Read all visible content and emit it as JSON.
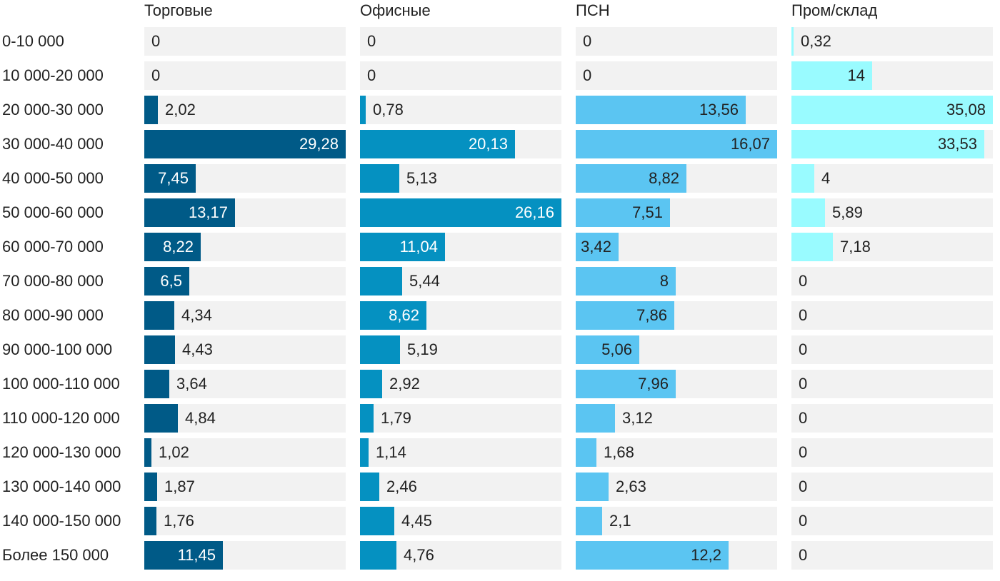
{
  "chart_data": {
    "type": "bar",
    "orientation": "horizontal",
    "layout": "small-multiples",
    "categories": [
      "0-10 000",
      "10 000-20 000",
      "20 000-30 000",
      "30 000-40 000",
      "40 000-50 000",
      "50 000-60 000",
      "60 000-70 000",
      "70 000-80 000",
      "80 000-90 000",
      "90 000-100 000",
      "100 000-110 000",
      "110 000-120 000",
      "120 000-130 000",
      "130 000-140 000",
      "140 000-150 000",
      "Более 150 000"
    ],
    "series": [
      {
        "name": "Торговые",
        "color": "#005a87",
        "values": [
          0,
          0,
          2.02,
          29.28,
          7.45,
          13.17,
          8.22,
          6.5,
          4.34,
          4.43,
          3.64,
          4.84,
          1.02,
          1.87,
          1.76,
          11.45
        ],
        "labels": [
          "0",
          "0",
          "2,02",
          "29,28",
          "7,45",
          "13,17",
          "8,22",
          "6,5",
          "4,34",
          "4,43",
          "3,64",
          "4,84",
          "1,02",
          "1,87",
          "1,76",
          "11,45"
        ],
        "xlim": [
          0,
          29.28
        ]
      },
      {
        "name": "Офисные",
        "color": "#0591c1",
        "values": [
          0,
          0,
          0.78,
          20.13,
          5.13,
          26.16,
          11.04,
          5.44,
          8.62,
          5.19,
          2.92,
          1.79,
          1.14,
          2.46,
          4.45,
          4.76
        ],
        "labels": [
          "0",
          "0",
          "0,78",
          "20,13",
          "5,13",
          "26,16",
          "11,04",
          "5,44",
          "8,62",
          "5,19",
          "2,92",
          "1,79",
          "1,14",
          "2,46",
          "4,45",
          "4,76"
        ],
        "xlim": [
          0,
          26.16
        ]
      },
      {
        "name": "ПСН",
        "color": "#5bc5f2",
        "values": [
          0,
          0,
          13.56,
          16.07,
          8.82,
          7.51,
          3.42,
          8,
          7.86,
          5.06,
          7.96,
          3.12,
          1.68,
          2.63,
          2.1,
          12.2
        ],
        "labels": [
          "0",
          "0",
          "13,56",
          "16,07",
          "8,82",
          "7,51",
          "3,42",
          "8",
          "7,86",
          "5,06",
          "7,96",
          "3,12",
          "1,68",
          "2,63",
          "2,1",
          "12,2"
        ],
        "xlim": [
          0,
          16.07
        ]
      },
      {
        "name": "Пром/склад",
        "color": "#99fbff",
        "values": [
          0.32,
          14,
          35.08,
          33.53,
          4,
          5.89,
          7.18,
          0,
          0,
          0,
          0,
          0,
          0,
          0,
          0,
          0
        ],
        "labels": [
          "0,32",
          "14",
          "35,08",
          "33,53",
          "4",
          "5,89",
          "7,18",
          "0",
          "0",
          "0",
          "0",
          "0",
          "0",
          "0",
          "0",
          "0"
        ],
        "xlim": [
          0,
          35.08
        ]
      }
    ],
    "title": "",
    "xlabel": "",
    "ylabel": "",
    "grid": false,
    "legend": "none"
  }
}
